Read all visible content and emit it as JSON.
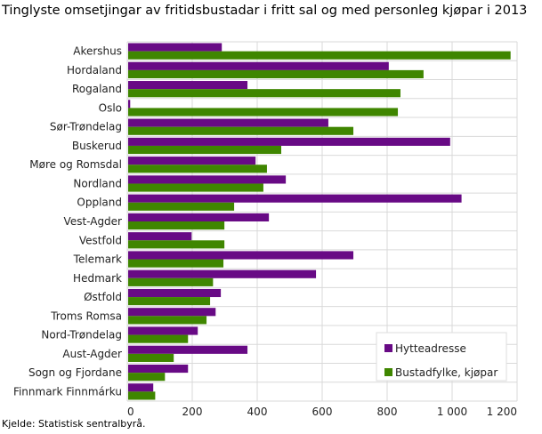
{
  "chart_data": {
    "type": "bar",
    "orientation": "horizontal",
    "title": "Tinglyste omsetjingar av fritidsbustadar i fritt sal og med personleg kjøpar i 2013",
    "source": "Kjelde: Statistisk sentralbyrå.",
    "categories": [
      "Akershus",
      "Hordaland",
      "Rogaland",
      "Oslo",
      "Sør-Trøndelag",
      "Buskerud",
      "Møre og Romsdal",
      "Nordland",
      "Oppland",
      "Vest-Agder",
      "Vestfold",
      "Telemark",
      "Hedmark",
      "Østfold",
      "Troms Romsa",
      "Nord-Trøndelag",
      "Aust-Agder",
      "Sogn og Fjordane",
      "Finnmark Finnmárku"
    ],
    "series": [
      {
        "name": "Hytteadresse",
        "color": "#680a85",
        "values": [
          291,
          805,
          370,
          9,
          619,
          994,
          395,
          488,
          1029,
          436,
          198,
          696,
          581,
          288,
          272,
          217,
          370,
          187,
          80
        ]
      },
      {
        "name": "Bustadfylke, kjøpar",
        "color": "#3f8600",
        "values": [
          1180,
          912,
          841,
          833,
          696,
          474,
          430,
          419,
          329,
          299,
          299,
          296,
          264,
          255,
          244,
          187,
          143,
          116,
          86
        ]
      }
    ],
    "xlim": [
      0,
      1200
    ],
    "xticks": [
      0,
      200,
      400,
      600,
      800,
      1000,
      1200
    ],
    "xtick_labels": [
      "0",
      "200",
      "400",
      "600",
      "800",
      "1 000",
      "1 200"
    ],
    "grid": true,
    "legend_position": "bottom-right"
  }
}
